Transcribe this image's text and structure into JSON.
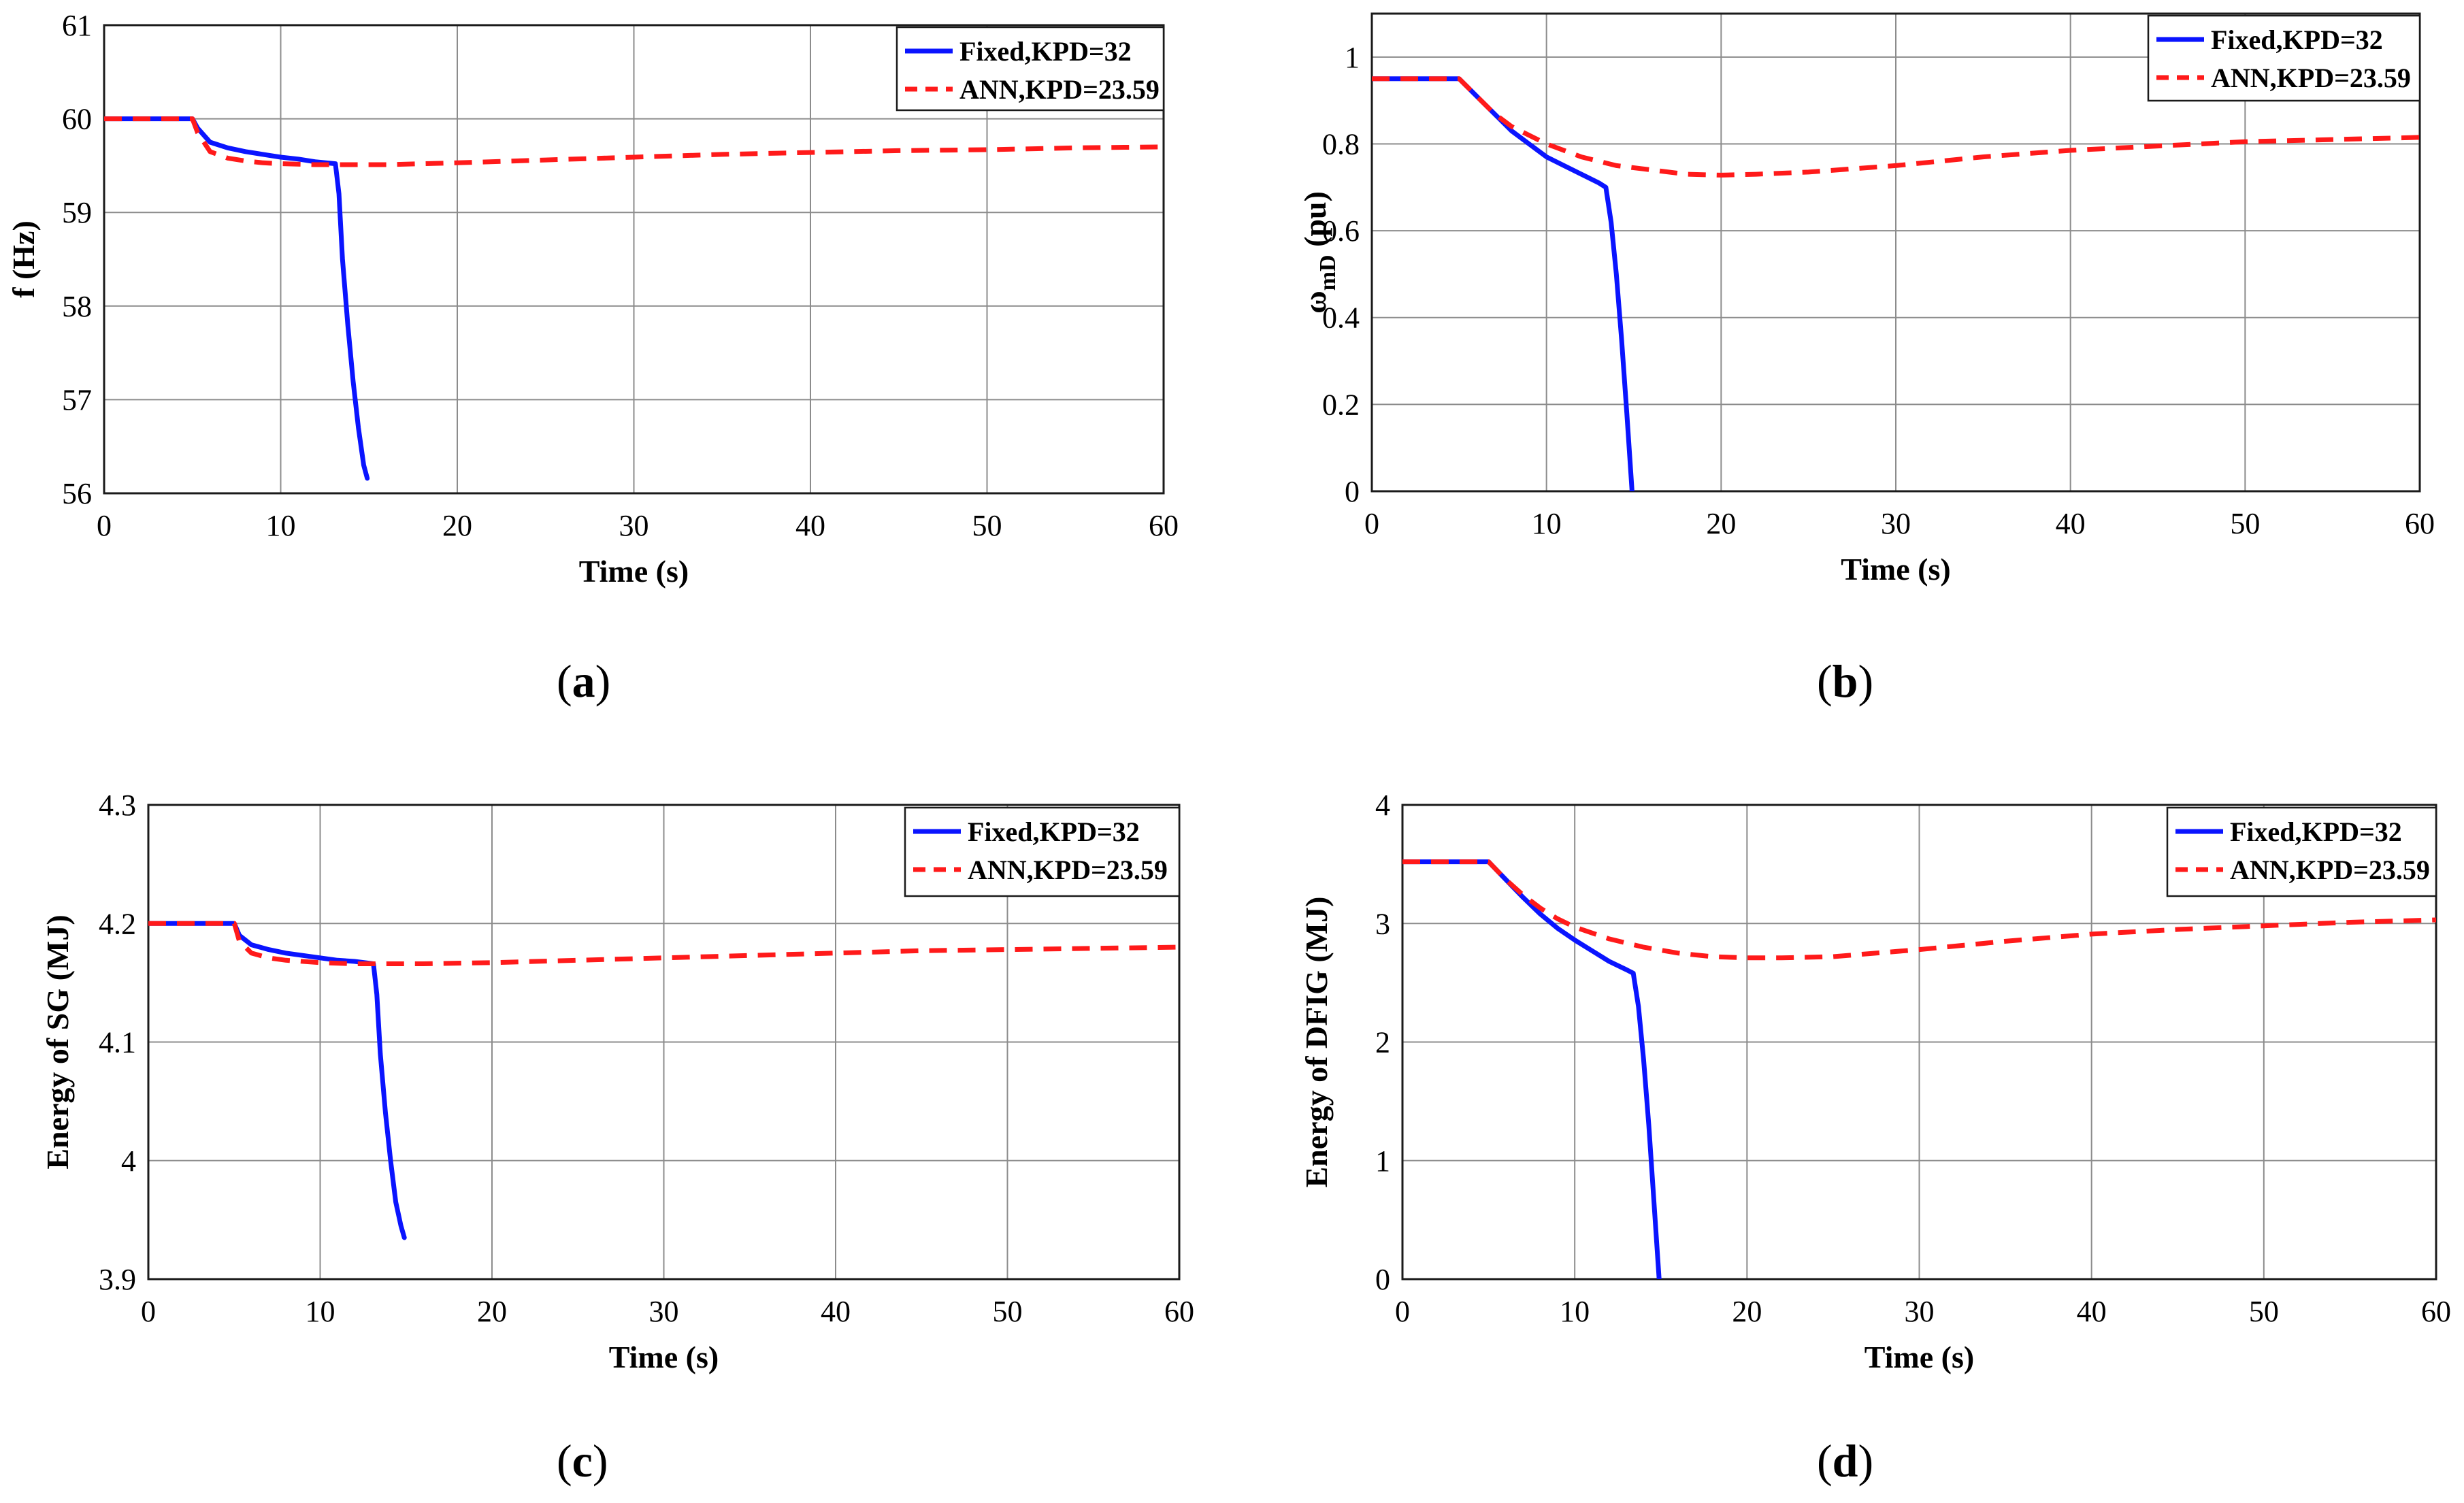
{
  "captions": [
    "a",
    "b",
    "c",
    "d"
  ],
  "chart_data": [
    {
      "type": "line",
      "panel": "a",
      "xlabel": "Time (s)",
      "ylabel": "f (Hz)",
      "xlim": [
        0,
        60
      ],
      "ylim": [
        56,
        61
      ],
      "xticks": [
        0,
        10,
        20,
        30,
        40,
        50,
        60
      ],
      "yticks": [
        56,
        57,
        58,
        59,
        60,
        61
      ],
      "xtick_labels": [
        "0",
        "10",
        "20",
        "30",
        "40",
        "50",
        "60"
      ],
      "ytick_labels": [
        "56",
        "57",
        "58",
        "59",
        "60",
        "61"
      ],
      "grid": true,
      "legend_position": "top-right",
      "series": [
        {
          "name": "Fixed,KPD=32",
          "color": "#0a14ff",
          "style": "solid",
          "x": [
            0,
            5,
            5.3,
            6,
            7,
            8,
            9,
            10,
            11,
            12,
            13.1,
            13.3,
            13.5,
            13.8,
            14.1,
            14.4,
            14.7,
            14.9
          ],
          "y": [
            60.0,
            60.0,
            59.9,
            59.75,
            59.69,
            59.65,
            59.62,
            59.59,
            59.57,
            59.54,
            59.52,
            59.2,
            58.5,
            57.8,
            57.2,
            56.7,
            56.3,
            56.16
          ]
        },
        {
          "name": "ANN,KPD=23.59",
          "color": "#ff1a1a",
          "style": "dashed",
          "x": [
            0,
            5,
            5.3,
            6,
            7,
            8,
            9,
            10,
            12,
            14,
            16,
            20,
            25,
            30,
            35,
            40,
            45,
            50,
            55,
            60
          ],
          "y": [
            60.0,
            60.0,
            59.85,
            59.65,
            59.58,
            59.55,
            59.53,
            59.52,
            59.51,
            59.51,
            59.51,
            59.53,
            59.56,
            59.59,
            59.62,
            59.64,
            59.66,
            59.67,
            59.69,
            59.7
          ]
        }
      ]
    },
    {
      "type": "line",
      "panel": "b",
      "xlabel": "Time (s)",
      "ylabel": "ω",
      "ylabel_sub": "mD",
      "ylabel_suffix": " (pu)",
      "xlim": [
        0,
        60
      ],
      "ylim": [
        0,
        1.1
      ],
      "xticks": [
        0,
        10,
        20,
        30,
        40,
        50,
        60
      ],
      "yticks": [
        0,
        0.2,
        0.4,
        0.6,
        0.8,
        1
      ],
      "xtick_labels": [
        "0",
        "10",
        "20",
        "30",
        "40",
        "50",
        "60"
      ],
      "ytick_labels": [
        "0",
        "0.2",
        "0.4",
        "0.6",
        "0.8",
        "1"
      ],
      "grid": true,
      "legend_position": "top-right",
      "series": [
        {
          "name": "Fixed,KPD=32",
          "color": "#0a14ff",
          "style": "solid",
          "x": [
            0,
            5,
            6,
            7,
            8,
            9,
            10,
            11,
            12,
            13,
            13.4,
            13.7,
            14,
            14.3,
            14.6,
            14.9
          ],
          "y": [
            0.95,
            0.95,
            0.91,
            0.87,
            0.83,
            0.8,
            0.77,
            0.75,
            0.73,
            0.71,
            0.7,
            0.62,
            0.5,
            0.35,
            0.18,
            0.0
          ]
        },
        {
          "name": "ANN,KPD=23.59",
          "color": "#ff1a1a",
          "style": "dashed",
          "x": [
            0,
            5,
            6,
            7,
            8,
            9,
            10,
            12,
            14,
            16,
            18,
            20,
            22,
            25,
            30,
            35,
            40,
            45,
            50,
            55,
            60
          ],
          "y": [
            0.95,
            0.95,
            0.91,
            0.87,
            0.84,
            0.82,
            0.8,
            0.77,
            0.75,
            0.74,
            0.73,
            0.728,
            0.73,
            0.735,
            0.75,
            0.77,
            0.785,
            0.795,
            0.805,
            0.81,
            0.815
          ]
        }
      ]
    },
    {
      "type": "line",
      "panel": "c",
      "xlabel": "Time (s)",
      "ylabel": "Energy of SG (MJ)",
      "xlim": [
        0,
        60
      ],
      "ylim": [
        3.9,
        4.3
      ],
      "xticks": [
        0,
        10,
        20,
        30,
        40,
        50,
        60
      ],
      "yticks": [
        3.9,
        4.0,
        4.1,
        4.2,
        4.3
      ],
      "xtick_labels": [
        "0",
        "10",
        "20",
        "30",
        "40",
        "50",
        "60"
      ],
      "ytick_labels": [
        "3.9",
        "4",
        "4.1",
        "4.2",
        "4.3"
      ],
      "grid": true,
      "legend_position": "top-right",
      "series": [
        {
          "name": "Fixed,KPD=32",
          "color": "#0a14ff",
          "style": "solid",
          "x": [
            0,
            5,
            5.3,
            6,
            7,
            8,
            9,
            10,
            11,
            12,
            13.1,
            13.3,
            13.5,
            13.8,
            14.1,
            14.4,
            14.7,
            14.9
          ],
          "y": [
            4.2,
            4.2,
            4.19,
            4.182,
            4.178,
            4.175,
            4.173,
            4.171,
            4.169,
            4.168,
            4.166,
            4.14,
            4.09,
            4.04,
            4.0,
            3.965,
            3.945,
            3.935
          ]
        },
        {
          "name": "ANN,KPD=23.59",
          "color": "#ff1a1a",
          "style": "dashed",
          "x": [
            0,
            5,
            5.3,
            6,
            7,
            8,
            10,
            12,
            14,
            16,
            20,
            25,
            30,
            35,
            40,
            45,
            50,
            55,
            60
          ],
          "y": [
            4.2,
            4.2,
            4.185,
            4.175,
            4.171,
            4.169,
            4.167,
            4.166,
            4.166,
            4.166,
            4.167,
            4.169,
            4.171,
            4.173,
            4.175,
            4.177,
            4.178,
            4.179,
            4.18
          ]
        }
      ]
    },
    {
      "type": "line",
      "panel": "d",
      "xlabel": "Time (s)",
      "ylabel": "Energy of DFIG (MJ)",
      "xlim": [
        0,
        60
      ],
      "ylim": [
        0,
        4
      ],
      "xticks": [
        0,
        10,
        20,
        30,
        40,
        50,
        60
      ],
      "yticks": [
        0,
        1,
        2,
        3,
        4
      ],
      "xtick_labels": [
        "0",
        "10",
        "20",
        "30",
        "40",
        "50",
        "60"
      ],
      "ytick_labels": [
        "0",
        "1",
        "2",
        "3",
        "4"
      ],
      "grid": true,
      "legend_position": "top-right",
      "series": [
        {
          "name": "Fixed,KPD=32",
          "color": "#0a14ff",
          "style": "solid",
          "x": [
            0,
            5,
            6,
            7,
            8,
            9,
            10,
            11,
            12,
            13,
            13.4,
            13.7,
            14,
            14.3,
            14.6,
            14.9
          ],
          "y": [
            3.52,
            3.52,
            3.37,
            3.22,
            3.08,
            2.96,
            2.86,
            2.77,
            2.68,
            2.61,
            2.58,
            2.3,
            1.85,
            1.3,
            0.65,
            0.0
          ]
        },
        {
          "name": "ANN,KPD=23.59",
          "color": "#ff1a1a",
          "style": "dashed",
          "x": [
            0,
            5,
            6,
            7,
            8,
            9,
            10,
            12,
            14,
            16,
            18,
            20,
            22,
            25,
            30,
            35,
            40,
            45,
            50,
            55,
            60
          ],
          "y": [
            3.52,
            3.52,
            3.37,
            3.24,
            3.13,
            3.04,
            2.97,
            2.87,
            2.8,
            2.75,
            2.72,
            2.71,
            2.71,
            2.72,
            2.78,
            2.85,
            2.91,
            2.95,
            2.98,
            3.01,
            3.03
          ]
        }
      ]
    }
  ]
}
